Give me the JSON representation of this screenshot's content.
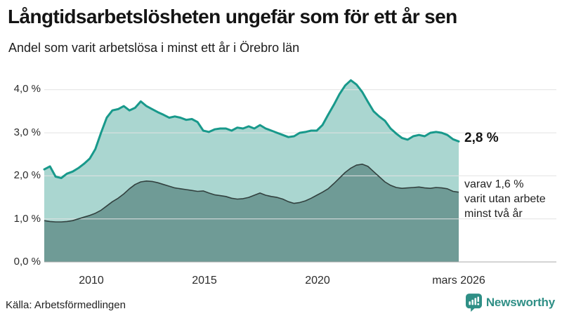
{
  "header": {
    "title": "Långtidsarbetslösheten ungefär som för ett år sen",
    "subtitle": "Andel som varit arbetslösa i minst ett år i Örebro län"
  },
  "annotations": {
    "primary_value": "2,8 %",
    "secondary_lines": [
      "varav 1,6 %",
      "varit utan arbete",
      "minst två år"
    ]
  },
  "footer": {
    "source": "Källa: Arbetsförmedlingen",
    "brand": "Newsworthy"
  },
  "colors": {
    "series1_line": "#18998b",
    "series1_fill": "#aad6d0",
    "series2_line": "#32413f",
    "series2_fill": "#6f9b96",
    "gridline": "#e2e2e2",
    "baseline": "#aaaaaa",
    "brand_teal": "#2f8f86"
  },
  "chart_data": {
    "type": "area",
    "title": "Långtidsarbetslösheten ungefär som för ett år sen",
    "subtitle": "Andel som varit arbetslösa i minst ett år i Örebro län",
    "x_start": 2008.0,
    "x_end": 2026.25,
    "x_step": 0.25,
    "ylim": [
      0,
      4.4
    ],
    "grid": true,
    "y_ticks": [
      {
        "label": "0,0 %",
        "value": 0
      },
      {
        "label": "1,0 %",
        "value": 1
      },
      {
        "label": "2,0 %",
        "value": 2
      },
      {
        "label": "3,0 %",
        "value": 3
      },
      {
        "label": "4,0 %",
        "value": 4
      }
    ],
    "x_ticks": [
      {
        "label": "2010",
        "year": 2010
      },
      {
        "label": "2015",
        "year": 2015
      },
      {
        "label": "2020",
        "year": 2020
      },
      {
        "label": "mars 2026",
        "year": 2026.25
      }
    ],
    "series": [
      {
        "name": "Andel arbetslösa minst ett år",
        "end_label": "2,8 %",
        "end_value": 2.8,
        "values": [
          2.15,
          2.22,
          1.98,
          1.95,
          2.05,
          2.1,
          2.18,
          2.28,
          2.4,
          2.62,
          3.0,
          3.35,
          3.52,
          3.55,
          3.62,
          3.52,
          3.58,
          3.73,
          3.62,
          3.55,
          3.48,
          3.42,
          3.35,
          3.38,
          3.35,
          3.3,
          3.32,
          3.25,
          3.05,
          3.02,
          3.08,
          3.1,
          3.1,
          3.05,
          3.12,
          3.1,
          3.15,
          3.1,
          3.18,
          3.1,
          3.05,
          3.0,
          2.95,
          2.9,
          2.92,
          3.0,
          3.02,
          3.05,
          3.05,
          3.18,
          3.42,
          3.65,
          3.9,
          4.1,
          4.22,
          4.12,
          3.95,
          3.72,
          3.5,
          3.38,
          3.28,
          3.1,
          2.98,
          2.88,
          2.84,
          2.92,
          2.95,
          2.92,
          3.0,
          3.02,
          3.0,
          2.95,
          2.85,
          2.8
        ]
      },
      {
        "name": "varav utan arbete minst två år",
        "end_label": "1,6 %",
        "end_value": 1.6,
        "values": [
          0.96,
          0.94,
          0.93,
          0.93,
          0.94,
          0.96,
          1.0,
          1.04,
          1.08,
          1.13,
          1.2,
          1.3,
          1.4,
          1.48,
          1.58,
          1.7,
          1.8,
          1.86,
          1.88,
          1.87,
          1.84,
          1.8,
          1.76,
          1.72,
          1.7,
          1.68,
          1.66,
          1.64,
          1.65,
          1.6,
          1.56,
          1.54,
          1.52,
          1.48,
          1.46,
          1.47,
          1.5,
          1.55,
          1.6,
          1.55,
          1.52,
          1.5,
          1.46,
          1.4,
          1.36,
          1.38,
          1.42,
          1.48,
          1.55,
          1.62,
          1.7,
          1.82,
          1.95,
          2.08,
          2.18,
          2.25,
          2.27,
          2.22,
          2.1,
          1.98,
          1.86,
          1.78,
          1.73,
          1.71,
          1.72,
          1.73,
          1.74,
          1.72,
          1.71,
          1.73,
          1.72,
          1.7,
          1.64,
          1.62
        ]
      }
    ]
  }
}
